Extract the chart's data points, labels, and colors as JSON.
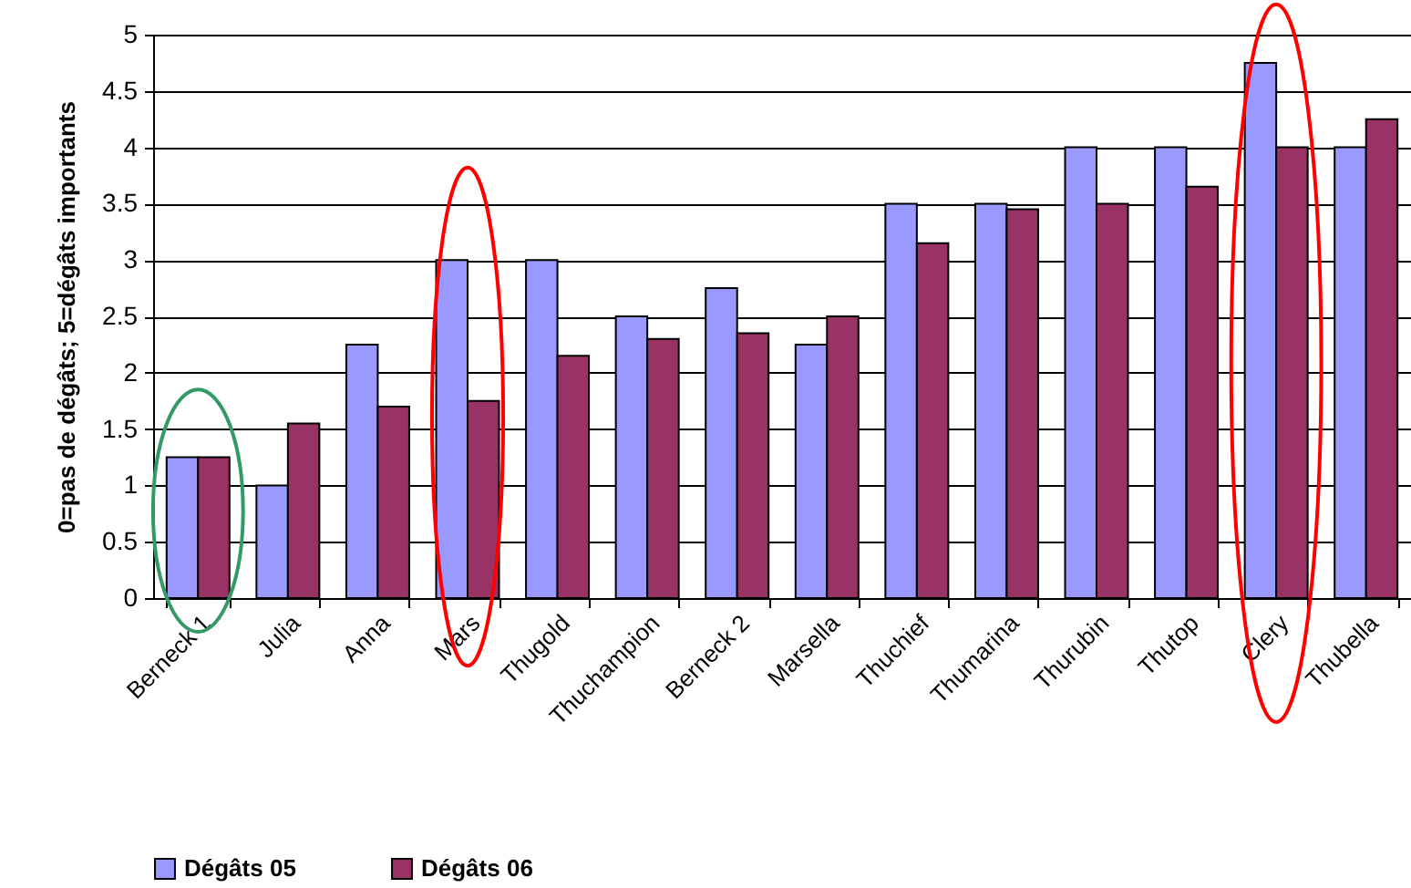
{
  "chart_data": {
    "type": "bar",
    "ylabel": "0=pas de dégâts; 5=dégâts importants",
    "categories": [
      "Berneck 1",
      "Julia",
      "Anna",
      "Mars",
      "Thugold",
      "Thuchampion",
      "Berneck 2",
      "Marsella",
      "Thuchief",
      "Thumarina",
      "Thurubin",
      "Thutop",
      "Clery",
      "Thubella"
    ],
    "series": [
      {
        "name": "Dégâts 05",
        "color": "#9999ff",
        "values": [
          1.25,
          1,
          2.25,
          3,
          3,
          2.5,
          2.75,
          2.25,
          3.5,
          3.5,
          4,
          4,
          4.75,
          4
        ]
      },
      {
        "name": "Dégâts 06",
        "color": "#993366",
        "values": [
          1.25,
          1.55,
          1.7,
          1.75,
          2.15,
          2.3,
          2.35,
          2.5,
          3.15,
          3.45,
          3.5,
          3.65,
          4,
          4.25
        ]
      }
    ],
    "ylim": [
      0,
      5
    ],
    "yticks": [
      0,
      0.5,
      1,
      1.5,
      2,
      2.5,
      3,
      3.5,
      4,
      4.5,
      5
    ],
    "grid": "y",
    "legend": "bottom"
  }
}
